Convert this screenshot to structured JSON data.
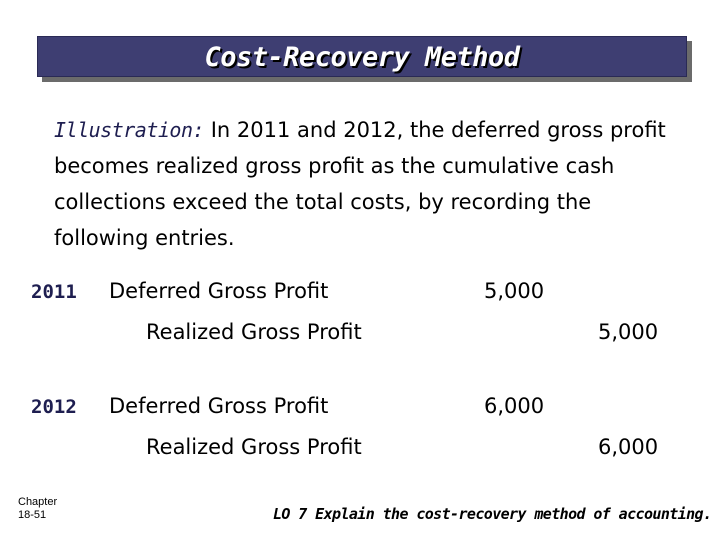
{
  "slide": {
    "title": "Cost-Recovery Method",
    "illustration_label": "Illustration:",
    "illustration_text": "In 2011 and 2012, the deferred gross profit becomes realized gross profit as the cumulative cash collections exceed the total costs, by recording the following entries."
  },
  "entries": [
    {
      "year": "2011",
      "debit_account": "Deferred Gross Profit",
      "debit_amount": "5,000",
      "credit_account": "Realized Gross Profit",
      "credit_amount": "5,000"
    },
    {
      "year": "2012",
      "debit_account": "Deferred Gross Profit",
      "debit_amount": "6,000",
      "credit_account": "Realized Gross Profit",
      "credit_amount": "6,000"
    }
  ],
  "footer": {
    "chapter_label": "Chapter",
    "page": "18-51",
    "learning_objective": "LO 7 Explain the cost-recovery method of accounting."
  },
  "colors": {
    "title_bar": "#3e3e72",
    "title_text": "#ffffff",
    "accent_text": "#1e1e50"
  }
}
